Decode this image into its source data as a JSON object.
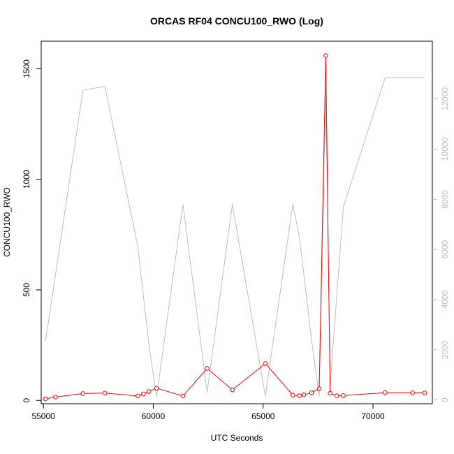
{
  "chart_data": {
    "type": "line",
    "title": "ORCAS RF04 CONCU100_RWO (Log)",
    "xlabel": "UTC Seconds",
    "ylabel": "CONCU100_RWO",
    "xlim": [
      54900,
      72700
    ],
    "ylim": [
      -15,
      1625
    ],
    "y2lim": [
      -150,
      14300
    ],
    "xticks": [
      55000,
      60000,
      65000,
      70000
    ],
    "yticks": [
      0,
      500,
      1000,
      1500
    ],
    "y2ticks": [
      0,
      2000,
      4000,
      6000,
      8000,
      10000,
      12000
    ],
    "grid": false,
    "colors": {
      "primary": "#ff0000",
      "secondary": "#bebebe",
      "axis": "#000000"
    },
    "series": [
      {
        "axis": "left",
        "color": "#ff0000",
        "markers": true,
        "x": [
          55100,
          55550,
          56800,
          57800,
          59300,
          59550,
          59800,
          60150,
          61350,
          62450,
          63600,
          65100,
          66350,
          66650,
          66850,
          67200,
          67550,
          67850,
          68050,
          68350,
          68650,
          70550,
          71800,
          72350
        ],
        "y": [
          7,
          15,
          31,
          33,
          20,
          29,
          40,
          55,
          20,
          145,
          48,
          167,
          24,
          21,
          25,
          35,
          53,
          1560,
          32,
          21,
          22,
          35,
          35,
          34
        ]
      },
      {
        "axis": "right",
        "color": "#bebebe",
        "markers": false,
        "x": [
          55100,
          56800,
          57800,
          59300,
          59800,
          60150,
          61350,
          62450,
          63600,
          65100,
          66350,
          66650,
          67200,
          67550,
          67850,
          68050,
          68650,
          70550,
          72350
        ],
        "y": [
          2350,
          12350,
          12500,
          6100,
          2200,
          120,
          7800,
          300,
          7800,
          150,
          7800,
          6500,
          2400,
          150,
          12500,
          600,
          7700,
          12850,
          12850
        ]
      }
    ]
  }
}
